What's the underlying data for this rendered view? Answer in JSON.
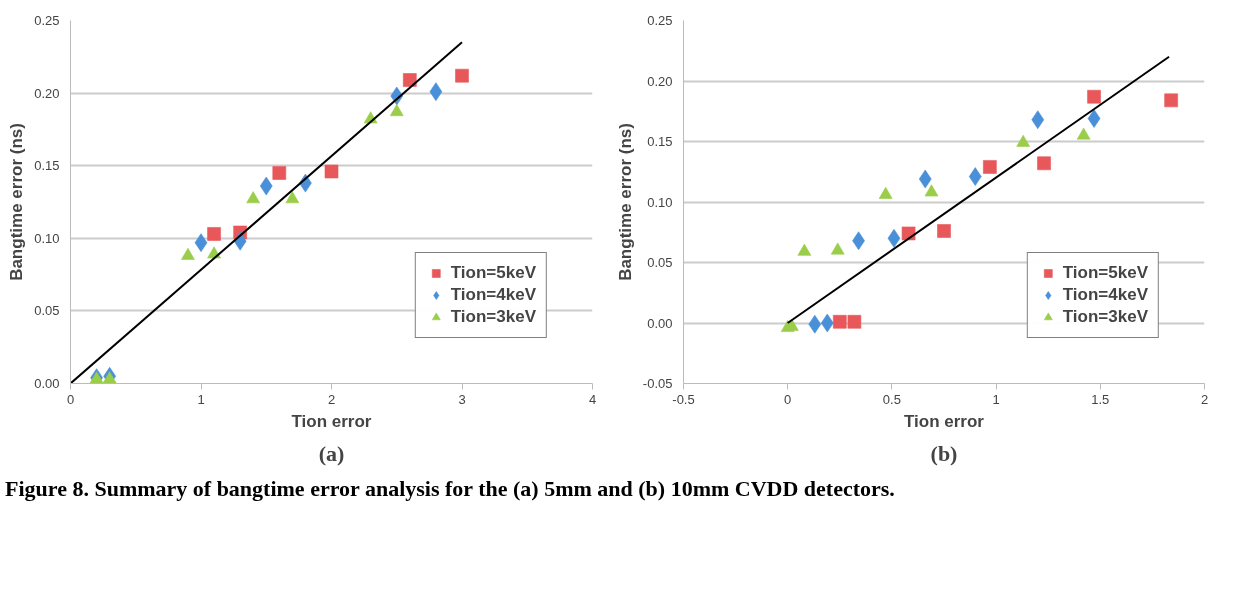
{
  "chart_data": [
    {
      "type": "scatter",
      "xlabel": "Tion error",
      "ylabel": "Bangtime error (ns)",
      "annotations": [
        "(a)",
        "Figure 8. Summary of bangtime error analysis for the (a) 5mm and (b) 10mm CVDD detectors."
      ],
      "xlim": [
        0,
        4
      ],
      "ylim": [
        0,
        0.25
      ],
      "xticks": [
        0,
        1,
        2,
        3,
        4
      ],
      "yticks": [
        {
          "value": 0,
          "label": "0.00"
        },
        {
          "value": 0.05,
          "label": "0.05"
        },
        {
          "value": 0.1,
          "label": "0.10"
        },
        {
          "value": 0.15,
          "label": "0.15"
        },
        {
          "value": 0.2,
          "label": "0.20"
        },
        {
          "value": 0.25,
          "label": "0.25"
        }
      ],
      "grid": "y",
      "legend": "bottom right",
      "series": [
        {
          "name": "Tion=5keV",
          "color": "#e8585a",
          "marker": "square",
          "x": [
            1.1,
            1.3,
            1.6,
            2.0,
            2.6,
            3.0
          ],
          "values": [
            0.103,
            0.104,
            0.145,
            0.146,
            0.209,
            0.212
          ]
        },
        {
          "name": "Tion=4keV",
          "color": "#4a90d9",
          "marker": "diamond",
          "x": [
            0.2,
            0.3,
            1.0,
            1.3,
            1.5,
            1.8,
            2.5,
            2.8
          ],
          "values": [
            0.004,
            0.005,
            0.097,
            0.098,
            0.136,
            0.138,
            0.198,
            0.201
          ]
        },
        {
          "name": "Tion=3keV",
          "color": "#9acd4a",
          "marker": "triangle",
          "x": [
            0.2,
            0.3,
            0.9,
            1.1,
            1.4,
            1.7,
            2.3,
            2.5
          ],
          "values": [
            0.003,
            0.003,
            0.088,
            0.089,
            0.127,
            0.127,
            0.182,
            0.187
          ]
        },
        {
          "type": "line",
          "color": "#000000",
          "x": [
            0,
            3
          ],
          "values": [
            0,
            0.235
          ]
        }
      ]
    },
    {
      "type": "scatter",
      "xlabel": "Tion error",
      "ylabel": "Bangtime error (ns)",
      "annotations": [
        "(b)"
      ],
      "xlim": [
        -0.5,
        2
      ],
      "ylim": [
        -0.05,
        0.25
      ],
      "xticks": [
        -0.5,
        0,
        0.5,
        1,
        1.5,
        2
      ],
      "yticks": [
        {
          "value": -0.05,
          "label": "-0.05"
        },
        {
          "value": 0,
          "label": "0.00"
        },
        {
          "value": 0.05,
          "label": "0.05"
        },
        {
          "value": 0.1,
          "label": "0.10"
        },
        {
          "value": 0.15,
          "label": "0.15"
        },
        {
          "value": 0.2,
          "label": "0.20"
        },
        {
          "value": 0.25,
          "label": "0.25"
        }
      ],
      "grid": "y",
      "legend": "bottom right",
      "series": [
        {
          "name": "Tion=5keV",
          "color": "#e8585a",
          "marker": "square",
          "x": [
            0.25,
            0.32,
            0.58,
            0.75,
            0.97,
            1.23,
            1.47,
            1.84
          ],
          "values": [
            0.001,
            0.001,
            0.074,
            0.076,
            0.129,
            0.132,
            0.187,
            0.184
          ]
        },
        {
          "name": "Tion=4keV",
          "color": "#4a90d9",
          "marker": "diamond",
          "x": [
            0.13,
            0.19,
            0.34,
            0.51,
            0.66,
            0.9,
            1.2,
            1.47
          ],
          "values": [
            -0.001,
            0.0,
            0.068,
            0.07,
            0.119,
            0.121,
            0.168,
            0.169
          ]
        },
        {
          "name": "Tion=3keV",
          "color": "#9acd4a",
          "marker": "triangle",
          "x": [
            0.0,
            0.02,
            0.08,
            0.24,
            0.47,
            0.69,
            1.13,
            1.42
          ],
          "values": [
            -0.004,
            -0.003,
            0.059,
            0.06,
            0.106,
            0.108,
            0.149,
            0.155
          ]
        },
        {
          "type": "line",
          "color": "#000000",
          "x": [
            0,
            1.83
          ],
          "values": [
            0,
            0.22
          ]
        }
      ]
    }
  ]
}
